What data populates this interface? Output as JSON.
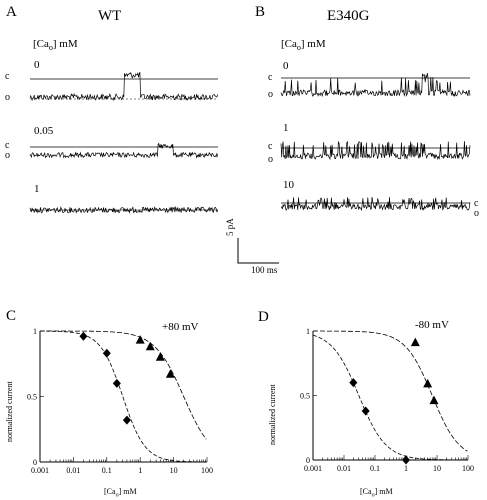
{
  "panels": {
    "A": {
      "letter": "A",
      "title": "WT",
      "conc_label_html": "[Ca",
      "conc_sub": "o",
      "conc_unit": "] mM",
      "traces": [
        {
          "conc": "0",
          "c": "c",
          "o": "o"
        },
        {
          "conc": "0.05",
          "c": "c",
          "o": "o"
        },
        {
          "conc": "1"
        }
      ]
    },
    "B": {
      "letter": "B",
      "title": "E340G",
      "conc_label_html": "[Ca",
      "conc_sub": "o",
      "conc_unit": "] mM",
      "traces": [
        {
          "conc": "0",
          "c": "c",
          "o": "o"
        },
        {
          "conc": "1",
          "c": "c",
          "o": "o"
        },
        {
          "conc": "10",
          "c": "c",
          "o": "o"
        }
      ]
    },
    "C": {
      "letter": "C",
      "voltage": "+80 mV"
    },
    "D": {
      "letter": "D",
      "voltage": "-80 mV"
    }
  },
  "scalebar": {
    "current": "5 pA",
    "time": "100 ms"
  },
  "chart_data": [
    {
      "panel": "C",
      "type": "scatter",
      "xscale": "log",
      "xlim": [
        0.001,
        100
      ],
      "ylim": [
        0,
        1
      ],
      "xticks": [
        "0.001",
        "0.01",
        "0.1",
        "1",
        "10",
        "100"
      ],
      "yticks": [
        "0",
        "0.5",
        "1"
      ],
      "ylabel": "normalized current",
      "xlabel": "[Ca",
      "xlabel_sub": "o",
      "xlabel_unit": "] mM",
      "series": [
        {
          "marker": "diamond",
          "x": [
            0.02,
            0.1,
            0.2,
            0.4
          ],
          "y": [
            0.96,
            0.83,
            0.6,
            0.32
          ],
          "fit_ic50": 0.3,
          "fit_n": 1.3
        },
        {
          "marker": "triangle",
          "x": [
            1,
            2,
            4,
            8
          ],
          "y": [
            0.93,
            0.88,
            0.8,
            0.67
          ],
          "fit_ic50": 20,
          "fit_n": 1.0
        }
      ]
    },
    {
      "panel": "D",
      "type": "scatter",
      "xscale": "log",
      "xlim": [
        0.001,
        100
      ],
      "ylim": [
        0,
        1
      ],
      "xticks": [
        "0.001",
        "0.01",
        "0.1",
        "1",
        "10",
        "100"
      ],
      "yticks": [
        "0",
        "0.5",
        "1"
      ],
      "ylabel": "normalized current",
      "xlabel": "[Ca",
      "xlabel_sub": "o",
      "xlabel_unit": "] mM",
      "series": [
        {
          "marker": "diamond",
          "x": [
            0.02,
            0.05,
            1
          ],
          "y": [
            0.6,
            0.38,
            0.0
          ],
          "fit_ic50": 0.03,
          "fit_n": 1.0
        },
        {
          "marker": "triangle",
          "x": [
            2,
            5,
            8
          ],
          "y": [
            0.91,
            0.59,
            0.46
          ],
          "fit_ic50": 7,
          "fit_n": 1.0
        }
      ]
    }
  ]
}
